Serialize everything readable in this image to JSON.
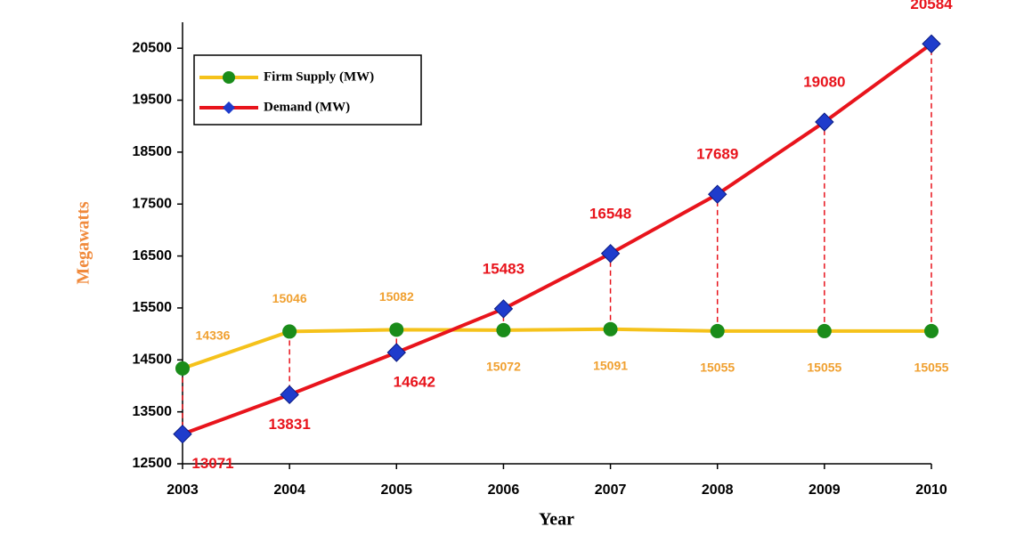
{
  "chart_data": {
    "type": "line",
    "x": [
      2003,
      2004,
      2005,
      2006,
      2007,
      2008,
      2009,
      2010
    ],
    "xlim": [
      2003,
      2010
    ],
    "xticks": [
      2003,
      2004,
      2005,
      2006,
      2007,
      2008,
      2009,
      2010
    ],
    "ylim": [
      12500,
      21000
    ],
    "yticks": [
      12500,
      13500,
      14500,
      15500,
      16500,
      17500,
      18500,
      19500,
      20500
    ],
    "xlabel": "Year",
    "ylabel": "Megawatts",
    "legend": "upper left",
    "series": [
      {
        "name": "Firm Supply (MW)",
        "color": "#f5c21b",
        "marker_color": "#1a8c1a",
        "marker": "circle",
        "values": [
          14336,
          15046,
          15082,
          15072,
          15091,
          15055,
          15055,
          15055
        ]
      },
      {
        "name": "Demand (MW)",
        "color": "#e8141c",
        "marker_color": "#1f3ccc",
        "marker": "diamond",
        "values": [
          13071,
          13831,
          14642,
          15483,
          16548,
          17689,
          19080,
          20584
        ]
      }
    ]
  }
}
